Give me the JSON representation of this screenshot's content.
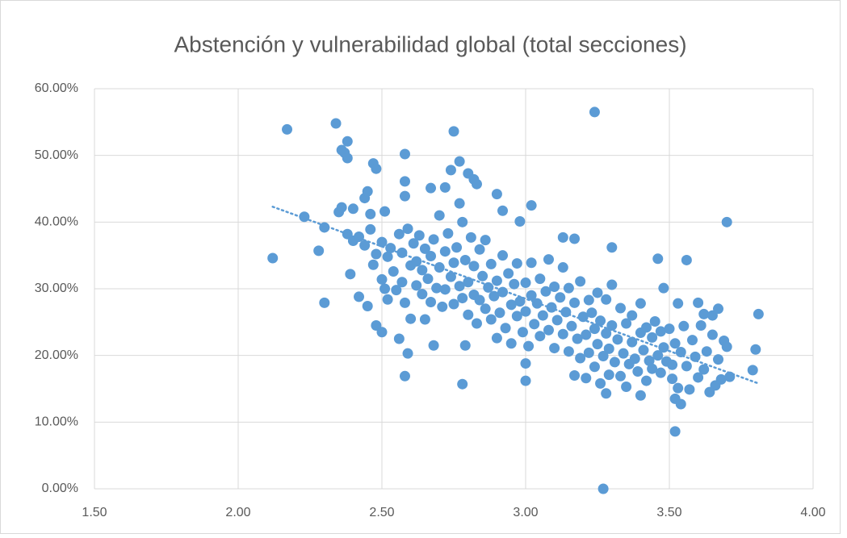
{
  "chart_data": {
    "type": "scatter",
    "title": "Abstención y vulnerabilidad global (total secciones)",
    "color": "#5b9bd5",
    "grid": true,
    "xlim": [
      1.5,
      4.0
    ],
    "xticks": [
      {
        "value": 1.5,
        "label": "1.50"
      },
      {
        "value": 2.0,
        "label": "2.00"
      },
      {
        "value": 2.5,
        "label": "2.50"
      },
      {
        "value": 3.0,
        "label": "3.00"
      },
      {
        "value": 3.5,
        "label": "3.50"
      },
      {
        "value": 4.0,
        "label": "4.00"
      }
    ],
    "ylim": [
      0,
      60
    ],
    "yticks": [
      {
        "value": 0,
        "label": "0.00%"
      },
      {
        "value": 10,
        "label": "10.00%"
      },
      {
        "value": 20,
        "label": "20.00%"
      },
      {
        "value": 30,
        "label": "30.00%"
      },
      {
        "value": 40,
        "label": "40.00%"
      },
      {
        "value": 50,
        "label": "50.00%"
      },
      {
        "value": 60,
        "label": "60.00%"
      }
    ],
    "trendline": {
      "x": [
        2.12,
        3.81
      ],
      "values": [
        42.3,
        15.8
      ]
    },
    "x": [
      2.12,
      2.17,
      2.23,
      2.28,
      2.3,
      2.3,
      2.34,
      2.35,
      2.36,
      2.36,
      2.37,
      2.38,
      2.38,
      2.38,
      2.39,
      2.4,
      2.4,
      2.42,
      2.44,
      2.45,
      2.45,
      2.46,
      2.47,
      2.47,
      2.48,
      2.48,
      2.5,
      2.51,
      2.56,
      2.58,
      2.58,
      2.58,
      2.58,
      2.59,
      2.67,
      2.68,
      2.72,
      2.74,
      2.75,
      2.77,
      2.78,
      2.79,
      2.8,
      2.82,
      2.83,
      2.9,
      2.92,
      2.98,
      3.0,
      3.0,
      3.02,
      3.13,
      3.17,
      3.24,
      3.27,
      3.3,
      3.46,
      3.48,
      3.51,
      3.52,
      3.52,
      3.54,
      3.56,
      3.69,
      3.7,
      3.79,
      3.8,
      3.81,
      3.4,
      3.28,
      3.6,
      3.62,
      3.66,
      3.64,
      2.42,
      2.44,
      2.46,
      2.48,
      2.5,
      2.5,
      2.51,
      2.52,
      2.52,
      2.53,
      2.54,
      2.55,
      2.56,
      2.57,
      2.57,
      2.58,
      2.59,
      2.6,
      2.6,
      2.61,
      2.62,
      2.62,
      2.63,
      2.64,
      2.64,
      2.65,
      2.65,
      2.66,
      2.67,
      2.67,
      2.68,
      2.69,
      2.7,
      2.7,
      2.71,
      2.72,
      2.72,
      2.73,
      2.74,
      2.75,
      2.75,
      2.76,
      2.77,
      2.77,
      2.78,
      2.78,
      2.79,
      2.8,
      2.8,
      2.81,
      2.82,
      2.82,
      2.83,
      2.84,
      2.84,
      2.85,
      2.86,
      2.86,
      2.87,
      2.88,
      2.88,
      2.89,
      2.9,
      2.9,
      2.91,
      2.92,
      2.92,
      2.93,
      2.94,
      2.95,
      2.95,
      2.96,
      2.97,
      2.97,
      2.98,
      2.99,
      3.0,
      3.0,
      3.01,
      3.02,
      3.02,
      3.03,
      3.04,
      3.05,
      3.05,
      3.06,
      3.07,
      3.08,
      3.08,
      3.09,
      3.1,
      3.1,
      3.11,
      3.12,
      3.13,
      3.13,
      3.14,
      3.15,
      3.15,
      3.16,
      3.17,
      3.17,
      3.18,
      3.19,
      3.19,
      3.2,
      3.21,
      3.21,
      3.22,
      3.22,
      3.23,
      3.24,
      3.24,
      3.25,
      3.25,
      3.26,
      3.26,
      3.27,
      3.28,
      3.28,
      3.29,
      3.29,
      3.3,
      3.3,
      3.31,
      3.32,
      3.33,
      3.33,
      3.34,
      3.35,
      3.35,
      3.36,
      3.37,
      3.37,
      3.38,
      3.39,
      3.4,
      3.4,
      3.41,
      3.42,
      3.42,
      3.43,
      3.44,
      3.44,
      3.45,
      3.46,
      3.47,
      3.47,
      3.48,
      3.49,
      3.5,
      3.51,
      3.52,
      3.53,
      3.53,
      3.54,
      3.55,
      3.56,
      3.57,
      3.58,
      3.59,
      3.6,
      3.61,
      3.62,
      3.63,
      3.65,
      3.67,
      3.68,
      3.7,
      3.71,
      3.65,
      3.67
    ],
    "values": [
      34.6,
      53.9,
      40.8,
      35.7,
      27.9,
      39.2,
      54.8,
      41.5,
      42.2,
      50.8,
      50.4,
      52.1,
      49.6,
      38.2,
      32.2,
      37.2,
      42.0,
      28.8,
      43.6,
      44.6,
      27.4,
      41.2,
      48.8,
      33.6,
      48.0,
      24.5,
      23.5,
      41.6,
      22.5,
      50.2,
      46.1,
      43.9,
      16.9,
      20.3,
      45.1,
      21.5,
      45.2,
      47.8,
      53.6,
      49.1,
      15.7,
      21.5,
      47.3,
      46.4,
      45.7,
      44.2,
      41.7,
      40.1,
      18.8,
      16.2,
      42.5,
      37.7,
      37.5,
      56.5,
      0.0,
      36.2,
      34.5,
      30.1,
      16.5,
      13.5,
      8.6,
      12.7,
      34.3,
      22.2,
      40.0,
      17.8,
      20.9,
      26.2,
      14.0,
      14.3,
      27.9,
      26.2,
      15.5,
      14.5,
      37.8,
      36.5,
      38.9,
      35.2,
      31.4,
      37.0,
      30.0,
      34.8,
      28.4,
      36.1,
      32.6,
      29.8,
      38.2,
      35.4,
      31.0,
      27.9,
      39.0,
      33.5,
      25.5,
      36.8,
      30.5,
      34.1,
      38.0,
      29.2,
      32.8,
      36.0,
      25.4,
      31.5,
      34.9,
      28.0,
      37.4,
      30.1,
      33.2,
      41.0,
      27.3,
      35.6,
      29.9,
      38.3,
      31.8,
      33.9,
      27.7,
      36.2,
      30.4,
      42.8,
      28.6,
      40.0,
      34.3,
      31.0,
      26.1,
      37.7,
      29.1,
      33.4,
      24.8,
      35.9,
      28.3,
      31.9,
      27.0,
      37.3,
      30.2,
      25.4,
      33.7,
      28.9,
      22.6,
      31.2,
      26.4,
      35.0,
      29.5,
      24.1,
      32.3,
      27.6,
      21.8,
      30.7,
      25.9,
      33.8,
      28.1,
      23.5,
      30.9,
      26.6,
      21.4,
      29.0,
      33.9,
      24.7,
      27.8,
      22.9,
      31.5,
      26.0,
      29.6,
      23.8,
      34.4,
      27.2,
      21.1,
      30.3,
      25.3,
      28.7,
      23.2,
      33.2,
      26.5,
      20.6,
      30.1,
      24.4,
      17.0,
      27.9,
      22.5,
      31.1,
      19.6,
      25.8,
      16.6,
      23.1,
      28.3,
      20.4,
      26.4,
      18.3,
      24.0,
      29.4,
      21.7,
      15.8,
      25.2,
      19.9,
      23.3,
      28.4,
      17.1,
      21.0,
      30.6,
      24.5,
      19.0,
      22.4,
      27.1,
      16.9,
      20.3,
      24.8,
      15.3,
      18.7,
      22.0,
      26.0,
      19.5,
      17.6,
      23.4,
      27.8,
      20.8,
      16.2,
      24.2,
      19.2,
      22.7,
      18.0,
      25.1,
      20.0,
      23.6,
      17.4,
      21.2,
      19.1,
      24.0,
      18.6,
      21.8,
      27.8,
      15.1,
      20.5,
      24.4,
      18.4,
      14.9,
      22.3,
      19.8,
      16.7,
      24.5,
      17.9,
      20.6,
      23.1,
      19.4,
      16.4,
      21.3,
      16.8,
      26.0,
      27.0
    ]
  }
}
